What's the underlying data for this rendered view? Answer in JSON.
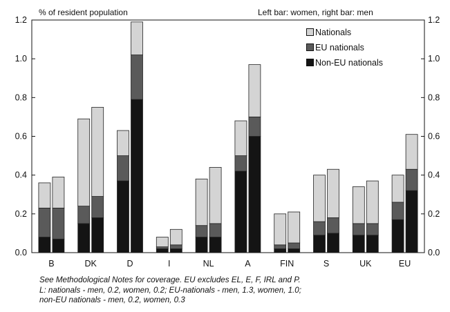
{
  "chart_data": {
    "type": "bar",
    "stacked": true,
    "unit_label": "% of resident population",
    "bar_order_note": "Left bar: women, right bar: men",
    "categories": [
      "B",
      "DK",
      "D",
      "I",
      "NL",
      "A",
      "FIN",
      "S",
      "UK",
      "EU"
    ],
    "groups": [
      "women",
      "men"
    ],
    "series": [
      {
        "name": "Non-EU nationals",
        "color": "#141414",
        "women": [
          0.08,
          0.15,
          0.37,
          0.02,
          0.08,
          0.42,
          0.02,
          0.09,
          0.09,
          0.17
        ],
        "men": [
          0.07,
          0.18,
          0.79,
          0.02,
          0.08,
          0.6,
          0.02,
          0.1,
          0.09,
          0.32
        ]
      },
      {
        "name": "EU nationals",
        "color": "#5a5a5a",
        "women": [
          0.15,
          0.09,
          0.13,
          0.01,
          0.06,
          0.08,
          0.02,
          0.07,
          0.06,
          0.09
        ],
        "men": [
          0.16,
          0.11,
          0.23,
          0.02,
          0.07,
          0.1,
          0.03,
          0.08,
          0.06,
          0.11
        ]
      },
      {
        "name": "Nationals",
        "color": "#d4d4d4",
        "women": [
          0.13,
          0.45,
          0.13,
          0.05,
          0.24,
          0.18,
          0.16,
          0.24,
          0.19,
          0.14
        ],
        "men": [
          0.16,
          0.46,
          0.17,
          0.08,
          0.29,
          0.27,
          0.16,
          0.25,
          0.22,
          0.18
        ]
      }
    ],
    "legend": {
      "items": [
        "Nationals",
        "EU nationals",
        "Non-EU nationals"
      ],
      "position": "top-right"
    },
    "y_ticks": [
      "0.0",
      "0.2",
      "0.4",
      "0.6",
      "0.8",
      "1.0",
      "1.2"
    ],
    "ylim": [
      0,
      1.2
    ],
    "grid": false,
    "colors": {
      "axis": "#111111",
      "bar_outline": "#222222"
    }
  },
  "notes": [
    "See Methodological Notes for coverage. EU excludes EL, E, F, IRL and P.",
    "L: nationals - men, 0.2, women, 0.2; EU-nationals - men, 1.3, women, 1.0;",
    "non-EU nationals - men, 0.2, women, 0.3"
  ]
}
